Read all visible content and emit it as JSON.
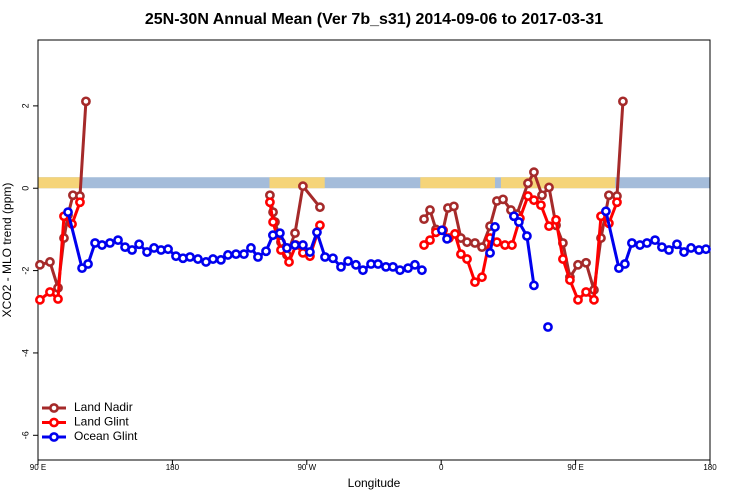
{
  "chart_data": {
    "type": "line",
    "title": "25N-30N Annual Mean (Ver 7b_s31)   2014-09-06 to 2017-03-31",
    "x_label": "Longitude",
    "y_label": "XCO2 - MLO trend (ppm)",
    "xlim": [
      90,
      540
    ],
    "ylim": [
      -6.6,
      3.6
    ],
    "xticks": [
      {
        "value": 90,
        "label": "90 E"
      },
      180,
      {
        "value": 270,
        "label": "90 W"
      },
      {
        "value": 360,
        "label": "0"
      },
      {
        "value": 450,
        "label": "90 E"
      },
      {
        "value": 540,
        "label": "180"
      }
    ],
    "yticks": [
      -6,
      -4,
      -2,
      0,
      2
    ],
    "legend": "bottom-left",
    "surface_band": {
      "land_color": "#f5d479",
      "ocean_color": "#a4bcda",
      "land": [
        [
          90,
          119.5
        ],
        [
          245,
          282
        ],
        [
          346,
          396
        ],
        [
          400,
          476.5
        ]
      ]
    },
    "series": [
      {
        "name": "Land Nadir",
        "color": "#a52a2a",
        "x": [
          91.3,
          98,
          103.4,
          107.4,
          110.1,
          113.4,
          118.1,
          122.1,
          null,
          245.3,
          247.4,
          248.7,
          252.7,
          256.7,
          262.1,
          267.4,
          278.8,
          null,
          348.5,
          352.5,
          356.5,
          361.2,
          364.5,
          368.5,
          373.2,
          377.3,
          382.6,
          387.3,
          392.7,
          397.3,
          401.4,
          406.7,
          410.7,
          418.1,
          422.1,
          427.5,
          432.2,
          436.9,
          441.5,
          446.2,
          451.6,
          457,
          462.3,
          467,
          472.3,
          477.7,
          481.7
        ],
        "values": [
          -1.86,
          -1.79,
          -2.42,
          -1.21,
          -0.65,
          -0.17,
          -0.19,
          2.11,
          null,
          -0.17,
          -0.58,
          -0.82,
          -1.31,
          -1.62,
          -1.09,
          0.05,
          -0.46,
          null,
          -0.75,
          -0.53,
          -1.0,
          -1.02,
          -0.48,
          -0.44,
          -1.21,
          -1.31,
          -1.33,
          -1.43,
          -0.92,
          -0.31,
          -0.27,
          -0.53,
          -0.63,
          0.12,
          0.39,
          -0.17,
          0.02,
          -0.9,
          -1.33,
          -2.16,
          -1.86,
          -1.81,
          -2.47,
          -1.21,
          -0.17,
          -0.19,
          2.11
        ]
      },
      {
        "name": "Land Glint",
        "color": "#ff0000",
        "x": [
          91.3,
          98,
          103.4,
          107.4,
          112.8,
          118.1,
          null,
          245.3,
          247.4,
          252.7,
          258.1,
          262.8,
          267.4,
          272.1,
          278.8,
          null,
          348.5,
          352.5,
          356.5,
          361.2,
          365.2,
          369.2,
          373.2,
          377.3,
          382.6,
          387.3,
          392.7,
          397.3,
          402.7,
          407.4,
          412.7,
          418.1,
          422.1,
          426.8,
          432.2,
          436.9,
          441.5,
          446.2,
          451.6,
          457,
          462.3,
          467,
          472.3,
          477.7
        ],
        "values": [
          -2.71,
          -2.52,
          -2.69,
          -0.68,
          -0.87,
          -0.34,
          null,
          -0.34,
          -0.82,
          -1.5,
          -1.79,
          -1.38,
          -1.57,
          -1.65,
          -0.9,
          null,
          -1.38,
          -1.26,
          -1.07,
          -1.02,
          -1.21,
          -1.11,
          -1.6,
          -1.72,
          -2.28,
          -2.16,
          -1.21,
          -1.31,
          -1.38,
          -1.38,
          -0.73,
          -0.19,
          -0.29,
          -0.41,
          -0.92,
          -0.77,
          -1.72,
          -2.23,
          -2.71,
          -2.52,
          -2.71,
          -0.68,
          -0.85,
          -0.34
        ]
      },
      {
        "name": "Ocean Glint",
        "color": "#0000ee",
        "x": [
          110.1,
          119.5,
          123.5,
          128.2,
          132.9,
          138.2,
          143.6,
          148.3,
          153,
          157.7,
          163,
          167.7,
          172.4,
          177.1,
          182.4,
          187.1,
          191.8,
          197.1,
          202.5,
          207.2,
          212.5,
          217.2,
          222.6,
          227.9,
          232.6,
          237.3,
          242.7,
          247.3,
          252,
          256.7,
          262.1,
          267.4,
          272.1,
          276.8,
          282.2,
          287.5,
          292.9,
          297.6,
          302.9,
          307.6,
          313,
          317.7,
          323,
          327.7,
          332.4,
          337.8,
          342.4,
          347.1,
          null,
          360.5,
          363.9,
          null,
          392.7,
          396,
          null,
          408.7,
          412,
          417.4,
          422.1,
          null,
          431.5,
          null,
          470.3,
          479,
          483,
          487.7,
          493.1,
          497.8,
          503.2,
          507.8,
          512.5,
          517.9,
          522.6,
          527.3,
          532.6,
          537.3
        ],
        "values": [
          -0.58,
          -1.94,
          -1.84,
          -1.33,
          -1.38,
          -1.33,
          -1.26,
          -1.43,
          -1.5,
          -1.36,
          -1.55,
          -1.45,
          -1.5,
          -1.48,
          -1.65,
          -1.7,
          -1.67,
          -1.72,
          -1.79,
          -1.72,
          -1.74,
          -1.62,
          -1.6,
          -1.6,
          -1.45,
          -1.67,
          -1.53,
          -1.14,
          -1.09,
          -1.45,
          -1.38,
          -1.38,
          -1.55,
          -1.07,
          -1.67,
          -1.7,
          -1.91,
          -1.77,
          -1.86,
          -1.99,
          -1.84,
          -1.84,
          -1.91,
          -1.91,
          -1.99,
          -1.94,
          -1.86,
          -1.99,
          null,
          -1.02,
          -1.23,
          null,
          -1.57,
          -0.94,
          null,
          -0.68,
          -0.82,
          -1.16,
          -2.36,
          null,
          -3.37,
          null,
          -0.56,
          -1.94,
          -1.84,
          -1.33,
          -1.38,
          -1.33,
          -1.26,
          -1.43,
          -1.5,
          -1.36,
          -1.55,
          -1.45,
          -1.5,
          -1.48
        ]
      }
    ]
  }
}
